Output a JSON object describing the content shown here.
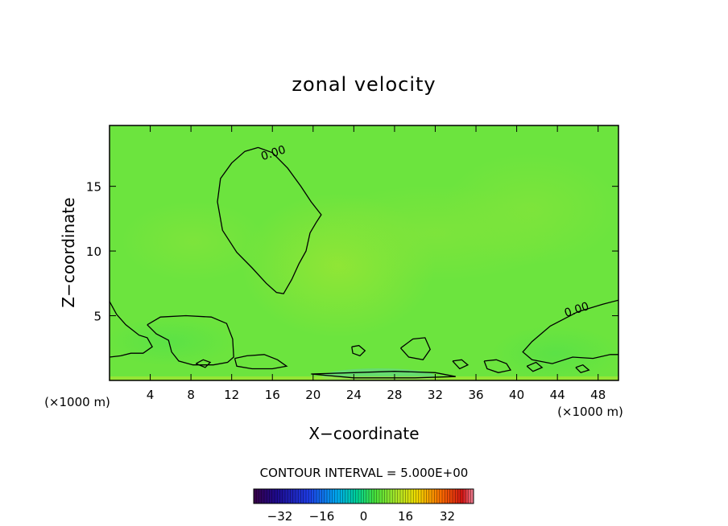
{
  "chart_data": {
    "type": "heatmap",
    "title": "zonal velocity",
    "xlabel": "X−coordinate",
    "ylabel": "Z−coordinate",
    "x_unit_left": "(×1000 m)",
    "x_unit_right": "(×1000 m)",
    "xlim": [
      0,
      50
    ],
    "ylim": [
      0,
      19.7
    ],
    "x_ticks": [
      4,
      8,
      12,
      16,
      20,
      24,
      28,
      32,
      36,
      40,
      44,
      48
    ],
    "y_ticks": [
      5,
      10,
      15
    ],
    "contour_interval_text": "CONTOUR INTERVAL = 5.000E+00",
    "contour_label": "0.00",
    "colorbar": {
      "min": -42,
      "max": 42,
      "tick_labels": [
        "−32",
        "−16",
        "0",
        "16",
        "32"
      ],
      "tick_values": [
        -32,
        -16,
        0,
        16,
        32
      ]
    },
    "field_value_range_approx": [
      -5,
      5
    ],
    "contours_zero_level": [
      [
        [
          14.6,
          18
        ],
        [
          16,
          17.6
        ],
        [
          17.5,
          16.4
        ],
        [
          18.8,
          15
        ],
        [
          19.8,
          13.8
        ],
        [
          20.8,
          12.8
        ],
        [
          20.3,
          12.2
        ],
        [
          19.7,
          11.4
        ],
        [
          19.3,
          10
        ],
        [
          18.6,
          9
        ],
        [
          17.9,
          7.8
        ],
        [
          17.1,
          6.7
        ],
        [
          16.4,
          6.8
        ],
        [
          15.4,
          7.5
        ],
        [
          14,
          8.7
        ],
        [
          12.5,
          9.9
        ],
        [
          11.1,
          11.6
        ],
        [
          10.6,
          13.8
        ],
        [
          10.9,
          15.6
        ],
        [
          12,
          16.8
        ],
        [
          13.3,
          17.7
        ],
        [
          14.6,
          18
        ]
      ],
      [
        [
          0,
          6.1
        ],
        [
          0.7,
          5.1
        ],
        [
          1.6,
          4.3
        ],
        [
          2.9,
          3.5
        ],
        [
          3.7,
          3.3
        ],
        [
          4.2,
          2.6
        ],
        [
          3.3,
          2.1
        ],
        [
          2.1,
          2.1
        ],
        [
          1.1,
          1.9
        ],
        [
          0,
          1.8
        ]
      ],
      [
        [
          50,
          6.2
        ],
        [
          48.5,
          5.9
        ],
        [
          46,
          5.3
        ],
        [
          43.3,
          4.2
        ],
        [
          41.5,
          3
        ],
        [
          40.6,
          2.2
        ],
        [
          41.5,
          1.6
        ],
        [
          43.5,
          1.3
        ],
        [
          45.5,
          1.8
        ],
        [
          47.5,
          1.7
        ],
        [
          49.2,
          2
        ],
        [
          50,
          2
        ]
      ],
      [
        [
          3.7,
          4.3
        ],
        [
          5,
          4.9
        ],
        [
          7.5,
          5
        ],
        [
          10,
          4.9
        ],
        [
          11.5,
          4.4
        ],
        [
          12.1,
          3.2
        ],
        [
          12.2,
          1.8
        ],
        [
          11.6,
          1.4
        ],
        [
          10.2,
          1.2
        ],
        [
          8.2,
          1.2
        ],
        [
          6.8,
          1.5
        ],
        [
          6.1,
          2.2
        ],
        [
          5.8,
          3.1
        ],
        [
          4.6,
          3.6
        ],
        [
          3.7,
          4.3
        ]
      ],
      [
        [
          12.3,
          1.7
        ],
        [
          13.5,
          1.9
        ],
        [
          15.2,
          2
        ],
        [
          16.5,
          1.6
        ],
        [
          17.4,
          1.1
        ],
        [
          16,
          0.9
        ],
        [
          14,
          0.9
        ],
        [
          12.5,
          1.1
        ],
        [
          12.3,
          1.7
        ]
      ],
      [
        [
          23.8,
          2.6
        ],
        [
          24.5,
          2.7
        ],
        [
          25.1,
          2.3
        ],
        [
          24.6,
          1.9
        ],
        [
          23.9,
          2.1
        ],
        [
          23.8,
          2.6
        ]
      ],
      [
        [
          28.6,
          2.5
        ],
        [
          29.8,
          3.2
        ],
        [
          31,
          3.3
        ],
        [
          31.5,
          2.4
        ],
        [
          30.8,
          1.6
        ],
        [
          29.4,
          1.8
        ],
        [
          28.6,
          2.5
        ]
      ],
      [
        [
          8.5,
          1.3
        ],
        [
          9.2,
          1.6
        ],
        [
          9.9,
          1.4
        ],
        [
          9.4,
          1
        ],
        [
          8.5,
          1.3
        ]
      ],
      [
        [
          33.7,
          1.5
        ],
        [
          34.6,
          1.6
        ],
        [
          35.2,
          1.2
        ],
        [
          34.4,
          0.9
        ],
        [
          33.7,
          1.5
        ]
      ],
      [
        [
          36.8,
          1.5
        ],
        [
          38,
          1.6
        ],
        [
          39,
          1.3
        ],
        [
          39.4,
          0.8
        ],
        [
          38.2,
          0.6
        ],
        [
          37.1,
          0.9
        ],
        [
          36.8,
          1.5
        ]
      ],
      [
        [
          41,
          1.1
        ],
        [
          41.9,
          1.4
        ],
        [
          42.5,
          1
        ],
        [
          41.6,
          0.7
        ],
        [
          41,
          1.1
        ]
      ],
      [
        [
          45.8,
          1
        ],
        [
          46.5,
          1.2
        ],
        [
          47.1,
          0.8
        ],
        [
          46.3,
          0.6
        ],
        [
          45.8,
          1
        ]
      ],
      [
        [
          19.8,
          0.5
        ],
        [
          24,
          0.6
        ],
        [
          28,
          0.7
        ],
        [
          32,
          0.6
        ],
        [
          34,
          0.3
        ],
        [
          30,
          0.2
        ],
        [
          24,
          0.2
        ],
        [
          19.8,
          0.5
        ]
      ]
    ],
    "contour_label_positions": [
      [
        16.2,
        17.3
      ],
      [
        46,
        5.2
      ]
    ],
    "legend": "none",
    "grid": false
  }
}
